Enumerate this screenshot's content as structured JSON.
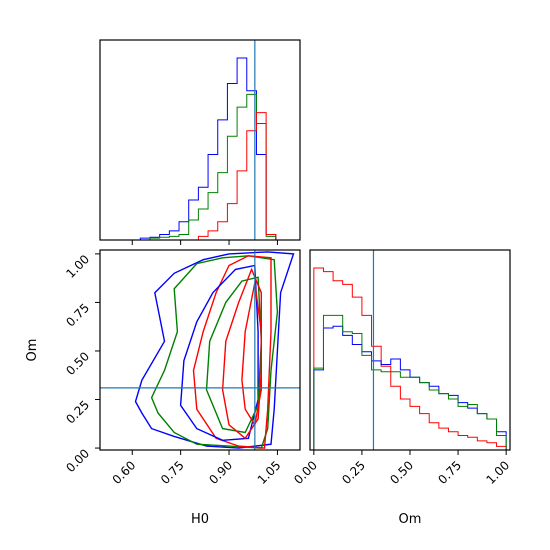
{
  "chart_data": [
    {
      "type": "histogram",
      "panel": "H0 marginal",
      "xlim": [
        0.5,
        1.12
      ],
      "x": [
        0.64,
        0.67,
        0.7,
        0.73,
        0.76,
        0.79,
        0.82,
        0.85,
        0.88,
        0.91,
        0.94,
        0.97,
        1.0,
        1.03,
        1.06
      ],
      "series": [
        {
          "color": "#0000ff",
          "values": [
            0.01,
            0.015,
            0.03,
            0.05,
            0.1,
            0.22,
            0.29,
            0.47,
            0.66,
            0.86,
            1.0,
            0.82,
            0.47,
            0.03,
            0.0
          ]
        },
        {
          "color": "#008000",
          "values": [
            0.0,
            0.01,
            0.015,
            0.02,
            0.03,
            0.11,
            0.17,
            0.26,
            0.37,
            0.57,
            0.73,
            0.8,
            0.64,
            0.02,
            0.0
          ]
        },
        {
          "color": "#ff0000",
          "values": [
            0.0,
            0.0,
            0.0,
            0.0,
            0.0,
            0.0,
            0.02,
            0.05,
            0.1,
            0.2,
            0.38,
            0.6,
            0.7,
            0.03,
            0.0
          ]
        }
      ],
      "truth": 0.98
    },
    {
      "type": "contour",
      "panel": "H0 vs Om joint",
      "xlabel": "H0",
      "ylabel": "Om",
      "xlim": [
        0.5,
        1.12
      ],
      "ylim": [
        -0.01,
        1.02
      ],
      "x_ticks": [
        "0.60",
        "0.75",
        "0.90",
        "1.05"
      ],
      "y_ticks": [
        "0.00",
        "0.25",
        "0.50",
        "0.75",
        "1.00"
      ],
      "truth": {
        "H0": 0.98,
        "Om": 0.31
      },
      "series": [
        {
          "color": "#0000ff",
          "points": [
            [
              0.63,
              0.18
            ],
            [
              0.61,
              0.24
            ],
            [
              0.63,
              0.35
            ],
            [
              0.7,
              0.55
            ],
            [
              0.67,
              0.8
            ],
            [
              0.73,
              0.9
            ],
            [
              0.82,
              0.97
            ],
            [
              0.9,
              1.0
            ],
            [
              1.02,
              1.01
            ],
            [
              1.1,
              1.0
            ],
            [
              1.06,
              0.8
            ],
            [
              1.05,
              0.5
            ],
            [
              1.04,
              0.2
            ],
            [
              1.03,
              0.02
            ],
            [
              0.93,
              0.0
            ],
            [
              0.83,
              0.01
            ],
            [
              0.73,
              0.06
            ],
            [
              0.66,
              0.1
            ]
          ]
        },
        {
          "color": "#008000",
          "points": [
            [
              0.68,
              0.18
            ],
            [
              0.66,
              0.26
            ],
            [
              0.7,
              0.4
            ],
            [
              0.74,
              0.6
            ],
            [
              0.73,
              0.82
            ],
            [
              0.8,
              0.95
            ],
            [
              0.88,
              0.98
            ],
            [
              0.96,
              0.99
            ],
            [
              1.04,
              0.97
            ],
            [
              1.05,
              0.7
            ],
            [
              1.03,
              0.4
            ],
            [
              1.02,
              0.1
            ],
            [
              1.0,
              0.0
            ],
            [
              0.9,
              0.01
            ],
            [
              0.8,
              0.02
            ],
            [
              0.73,
              0.08
            ]
          ]
        },
        {
          "color": "#ff0000",
          "points": [
            [
              0.8,
              0.2
            ],
            [
              0.79,
              0.4
            ],
            [
              0.82,
              0.6
            ],
            [
              0.86,
              0.8
            ],
            [
              0.9,
              0.94
            ],
            [
              0.96,
              0.99
            ],
            [
              1.03,
              0.98
            ],
            [
              1.03,
              0.6
            ],
            [
              1.02,
              0.2
            ],
            [
              1.01,
              0.0
            ],
            [
              0.93,
              0.01
            ],
            [
              0.86,
              0.05
            ]
          ]
        },
        {
          "color": "#0000ff",
          "points": [
            [
              0.75,
              0.22
            ],
            [
              0.76,
              0.45
            ],
            [
              0.8,
              0.65
            ],
            [
              0.85,
              0.8
            ],
            [
              0.92,
              0.92
            ],
            [
              0.98,
              0.94
            ],
            [
              0.99,
              0.6
            ],
            [
              0.99,
              0.25
            ],
            [
              0.96,
              0.05
            ],
            [
              0.88,
              0.04
            ],
            [
              0.8,
              0.1
            ]
          ]
        },
        {
          "color": "#008000",
          "points": [
            [
              0.83,
              0.3
            ],
            [
              0.84,
              0.55
            ],
            [
              0.89,
              0.75
            ],
            [
              0.94,
              0.86
            ],
            [
              0.99,
              0.88
            ],
            [
              1.0,
              0.55
            ],
            [
              0.99,
              0.22
            ],
            [
              0.95,
              0.08
            ],
            [
              0.88,
              0.1
            ]
          ]
        },
        {
          "color": "#ff0000",
          "points": [
            [
              0.88,
              0.3
            ],
            [
              0.89,
              0.55
            ],
            [
              0.93,
              0.75
            ],
            [
              0.97,
              0.92
            ],
            [
              1.0,
              0.8
            ],
            [
              1.0,
              0.4
            ],
            [
              0.99,
              0.15
            ],
            [
              0.95,
              0.05
            ],
            [
              0.9,
              0.12
            ]
          ]
        },
        {
          "color": "#ff0000",
          "points": [
            [
              0.94,
              0.35
            ],
            [
              0.95,
              0.6
            ],
            [
              0.98,
              0.85
            ],
            [
              1.0,
              0.6
            ],
            [
              1.0,
              0.3
            ],
            [
              0.98,
              0.12
            ],
            [
              0.95,
              0.2
            ]
          ]
        }
      ]
    },
    {
      "type": "histogram",
      "panel": "Om marginal",
      "xlabel": "Om",
      "xlim": [
        -0.02,
        1.02
      ],
      "x_ticks": [
        "0.00",
        "0.25",
        "0.50",
        "0.75",
        "1.00"
      ],
      "x": [
        0.025,
        0.075,
        0.125,
        0.175,
        0.225,
        0.275,
        0.325,
        0.375,
        0.425,
        0.475,
        0.525,
        0.575,
        0.625,
        0.675,
        0.725,
        0.775,
        0.825,
        0.875,
        0.925,
        0.975
      ],
      "series": [
        {
          "color": "#ff0000",
          "values": [
            1.0,
            0.98,
            0.93,
            0.91,
            0.84,
            0.74,
            0.57,
            0.46,
            0.35,
            0.28,
            0.24,
            0.2,
            0.15,
            0.12,
            0.1,
            0.08,
            0.07,
            0.05,
            0.04,
            0.02
          ]
        },
        {
          "color": "#0000ff",
          "values": [
            0.44,
            0.67,
            0.68,
            0.63,
            0.58,
            0.54,
            0.49,
            0.47,
            0.5,
            0.44,
            0.4,
            0.37,
            0.35,
            0.31,
            0.3,
            0.26,
            0.23,
            0.2,
            0.17,
            0.1
          ]
        },
        {
          "color": "#008000",
          "values": [
            0.45,
            0.74,
            0.74,
            0.65,
            0.64,
            0.52,
            0.44,
            0.43,
            0.43,
            0.4,
            0.4,
            0.37,
            0.33,
            0.31,
            0.28,
            0.24,
            0.25,
            0.2,
            0.17,
            0.08
          ]
        }
      ],
      "truth": 0.31
    }
  ]
}
